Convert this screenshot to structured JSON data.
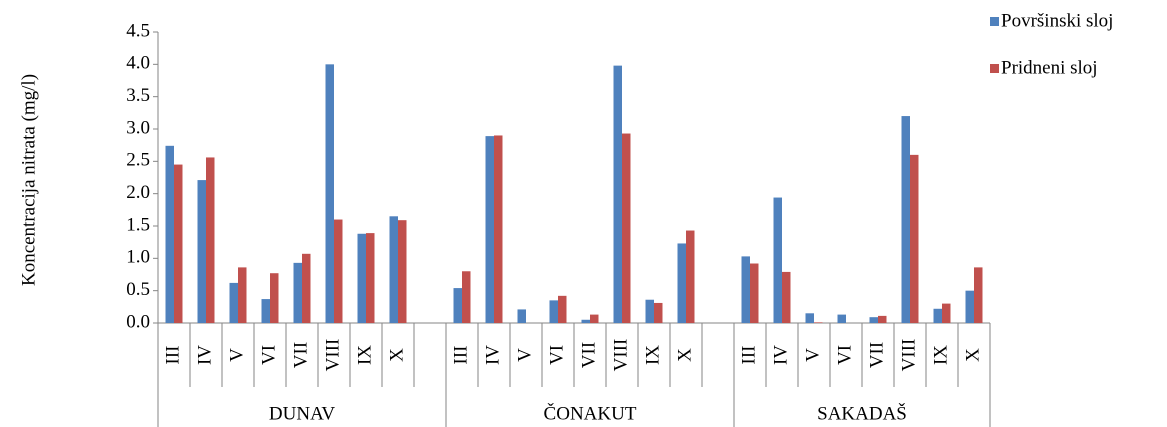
{
  "chart_data": {
    "type": "bar",
    "y_label": "Koncentracija nitrata (mg/l)",
    "groups": [
      {
        "name": "DUNAV",
        "categories": [
          "III",
          "IV",
          "V",
          "VI",
          "VII",
          "VIII",
          "IX",
          "X"
        ]
      },
      {
        "name": "ČONAKUT",
        "categories": [
          "III",
          "IV",
          "V",
          "VI",
          "VII",
          "VIII",
          "IX",
          "X"
        ]
      },
      {
        "name": "SAKADAŠ",
        "categories": [
          "III",
          "IV",
          "V",
          "VI",
          "VII",
          "VIII",
          "IX",
          "X"
        ]
      }
    ],
    "series": [
      {
        "name": "Površinski sloj",
        "color": "#4f81bd",
        "values": [
          2.74,
          2.21,
          0.62,
          0.37,
          0.93,
          4.0,
          1.38,
          1.65,
          0.54,
          2.89,
          0.21,
          0.35,
          0.05,
          3.98,
          0.36,
          1.23,
          1.03,
          1.94,
          0.15,
          0.13,
          0.09,
          3.2,
          0.22,
          0.5
        ]
      },
      {
        "name": "Pridneni sloj",
        "color": "#c0504d",
        "values": [
          2.45,
          2.56,
          0.86,
          0.77,
          1.07,
          1.6,
          1.39,
          1.59,
          0.8,
          2.9,
          0.0,
          0.42,
          0.13,
          2.93,
          0.31,
          1.43,
          0.92,
          0.79,
          0.01,
          0.0,
          0.11,
          2.6,
          0.3,
          0.86
        ]
      }
    ],
    "ylim": [
      0,
      4.5
    ],
    "yticks": [
      {
        "value": 0,
        "label": "0.0"
      },
      {
        "value": 0.5,
        "label": "0.5"
      },
      {
        "value": 1,
        "label": "1.0"
      },
      {
        "value": 1.5,
        "label": "1.5"
      },
      {
        "value": 2,
        "label": "2.0"
      },
      {
        "value": 2.5,
        "label": "2.5"
      },
      {
        "value": 3,
        "label": "3.0"
      },
      {
        "value": 3.5,
        "label": "3.5"
      },
      {
        "value": 4,
        "label": "4.0"
      },
      {
        "value": 4.5,
        "label": "4.5"
      }
    ],
    "legend": "top-right"
  }
}
